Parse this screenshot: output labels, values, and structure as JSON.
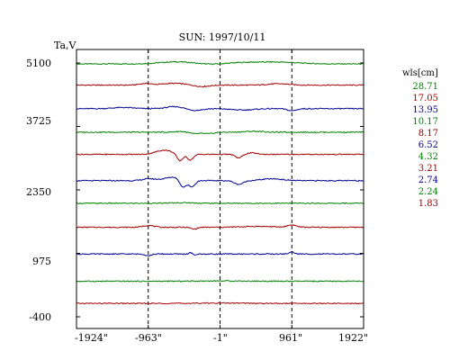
{
  "chart_data": {
    "type": "line",
    "title": "SUN: 1997/10/11",
    "ylabel": "Ta,V",
    "xticks": [
      "-1924\"",
      "-963\"",
      "-1\"",
      "961\"",
      "1922\""
    ],
    "x_tick_values": [
      -1924,
      -963,
      -1,
      961,
      1922
    ],
    "xlim": [
      -1924,
      1922
    ],
    "ylim": [
      -400,
      5100
    ],
    "yticks": [
      "5100",
      "3725",
      "2350",
      "975",
      "-400"
    ],
    "y_tick_values": [
      5100,
      3725,
      2350,
      975,
      -400
    ],
    "vlines": [
      -963,
      -1,
      961
    ],
    "legend_title": "wls[cm]",
    "legend_position": "right",
    "series": [
      {
        "name": "28.71",
        "color": "#008000",
        "baseline": 5080
      },
      {
        "name": "17.05",
        "color": "#a00000",
        "baseline": 4620
      },
      {
        "name": "13.95",
        "color": "#000090",
        "baseline": 4110
      },
      {
        "name": "10.17",
        "color": "#008000",
        "baseline": 3600
      },
      {
        "name": "8.17",
        "color": "#a00000",
        "baseline": 3120
      },
      {
        "name": "6.52",
        "color": "#000090",
        "baseline": 2550
      },
      {
        "name": "4.32",
        "color": "#008000",
        "baseline": 2060
      },
      {
        "name": "3.21",
        "color": "#a00000",
        "baseline": 1540
      },
      {
        "name": "2.74",
        "color": "#000090",
        "baseline": 960
      },
      {
        "name": "2.24",
        "color": "#008000",
        "baseline": 370
      },
      {
        "name": "1.83",
        "color": "#a00000",
        "baseline": -110
      }
    ]
  }
}
